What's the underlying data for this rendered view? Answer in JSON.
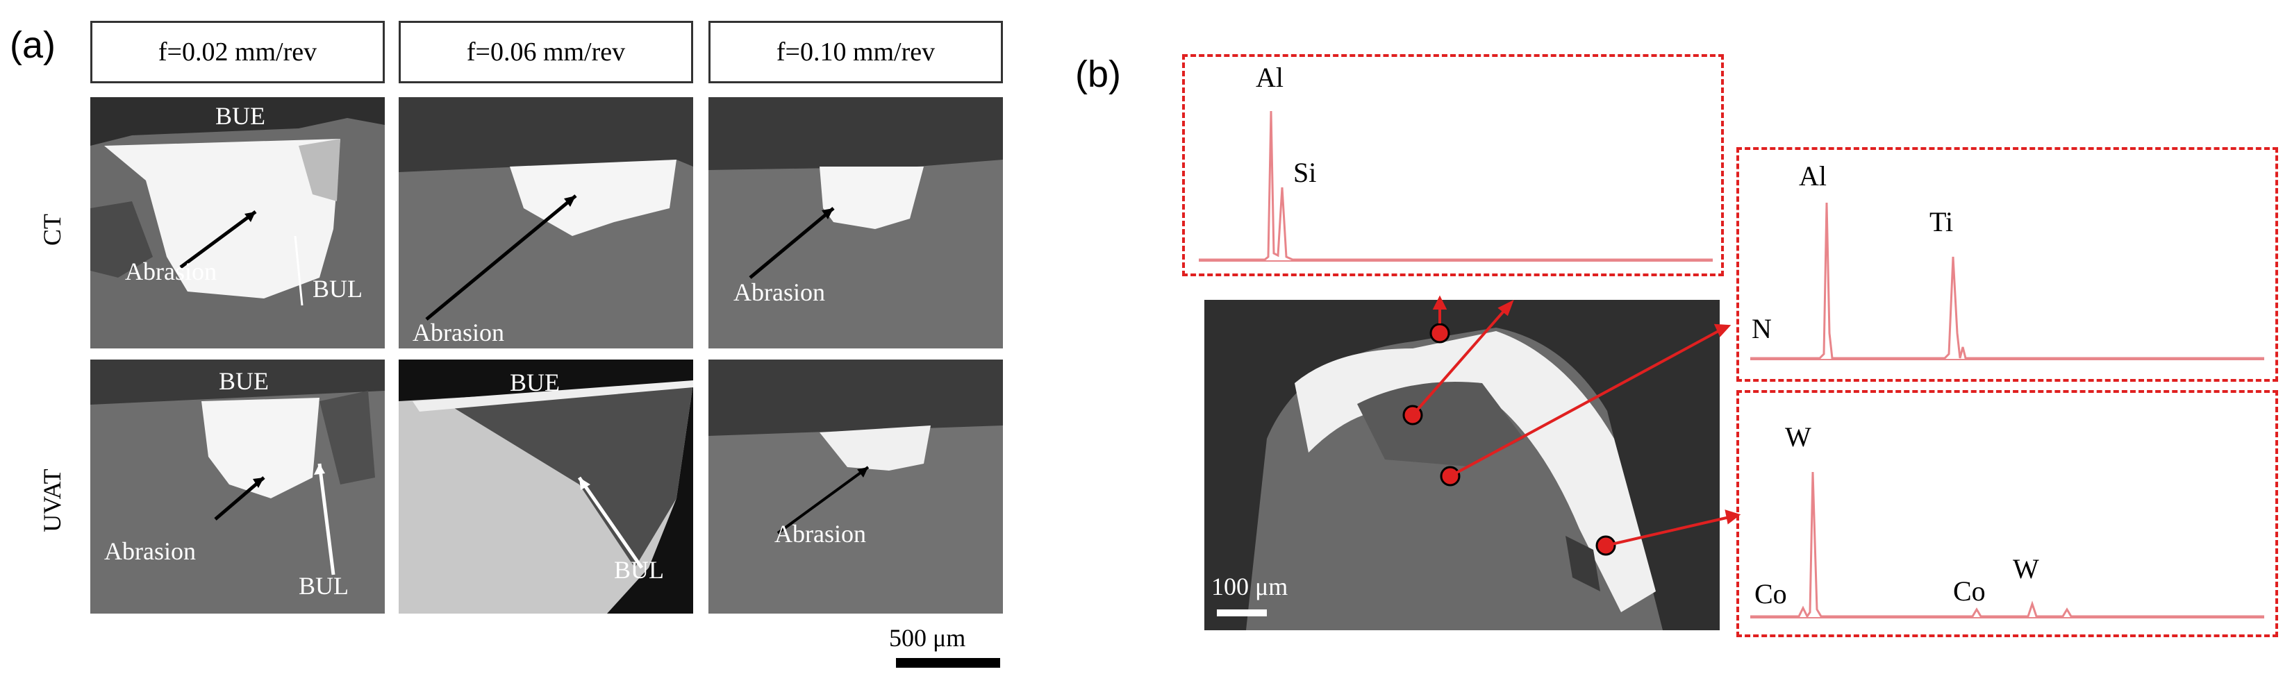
{
  "panel_a": {
    "letter": "(a)",
    "columns": [
      "f=0.02 mm/rev",
      "f=0.06 mm/rev",
      "f=0.10 mm/rev"
    ],
    "rows": [
      "CT",
      "UVAT"
    ],
    "images": {
      "ct_1": {
        "bue": "BUE",
        "abrasion": "Abrasion",
        "bul": "BUL"
      },
      "ct_2": {
        "abrasion": "Abrasion"
      },
      "ct_3": {
        "abrasion": "Abrasion"
      },
      "uvat_1": {
        "bue": "BUE",
        "abrasion": "Abrasion",
        "bul": "BUL"
      },
      "uvat_2": {
        "bue": "BUE",
        "bul": "BUL"
      },
      "uvat_3": {
        "abrasion": "Abrasion"
      }
    },
    "scale_bar": "500 μm"
  },
  "panel_b": {
    "letter": "(b)",
    "scale_bar": "100 μm",
    "spectrum_top": {
      "peaks": [
        "Al",
        "Si"
      ]
    },
    "spectrum_mid": {
      "peaks": [
        "N",
        "Al",
        "Ti"
      ]
    },
    "spectrum_bottom": {
      "peaks": [
        "Co",
        "W",
        "Co",
        "W"
      ]
    }
  },
  "colors": {
    "annotation_red": "#e02020",
    "spectrum_red": "#e8858a"
  }
}
